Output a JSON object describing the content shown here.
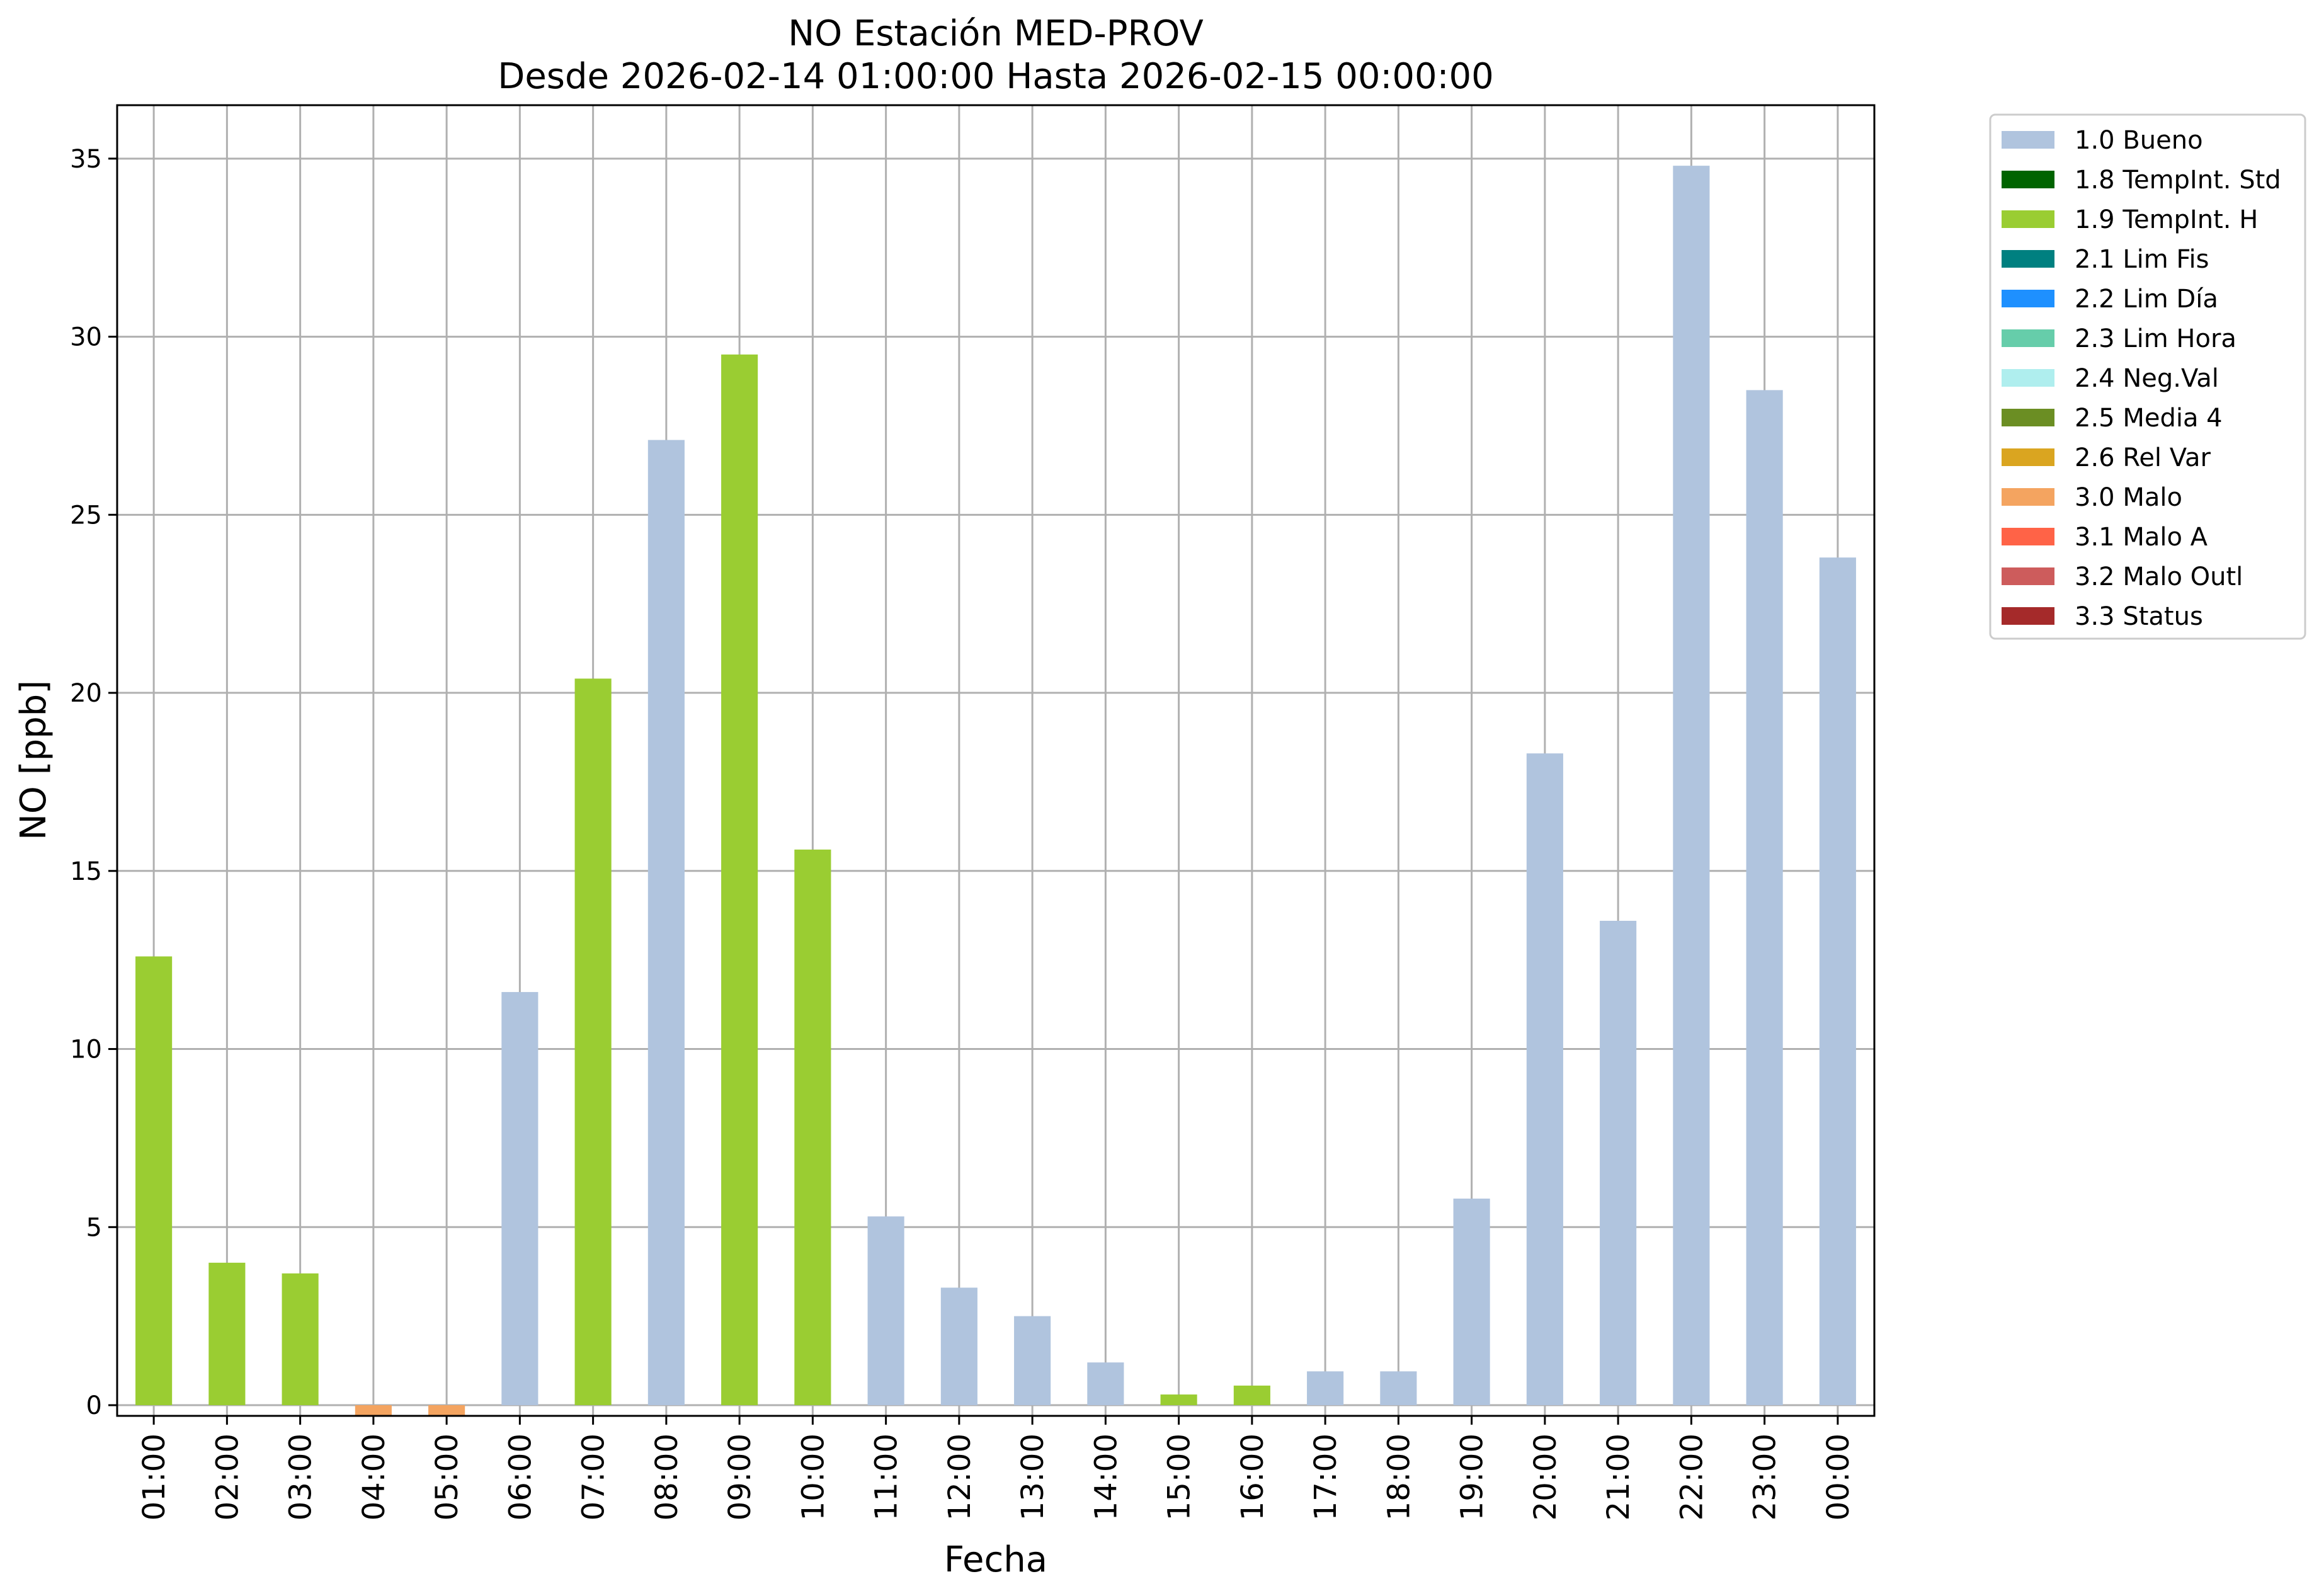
{
  "chart_data": {
    "type": "bar",
    "title": "NO Estación MED-PROV",
    "subtitle": "Desde 2026-02-14 01:00:00 Hasta 2026-02-15 00:00:00",
    "xlabel": "Fecha",
    "ylabel": "NO [ppb]",
    "ylim": [
      -0.3,
      36.5
    ],
    "yticks": [
      0,
      5,
      10,
      15,
      20,
      25,
      30,
      35
    ],
    "grid": true,
    "legend_position": "outside-right-top",
    "categories": [
      "01:00",
      "02:00",
      "03:00",
      "04:00",
      "05:00",
      "06:00",
      "07:00",
      "08:00",
      "09:00",
      "10:00",
      "11:00",
      "12:00",
      "13:00",
      "14:00",
      "15:00",
      "16:00",
      "17:00",
      "18:00",
      "19:00",
      "20:00",
      "21:00",
      "22:00",
      "23:00",
      "00:00"
    ],
    "values": [
      12.6,
      4.0,
      3.7,
      -0.3,
      -0.3,
      11.6,
      20.4,
      27.1,
      29.5,
      15.6,
      5.3,
      3.3,
      2.5,
      1.2,
      0.3,
      0.55,
      0.95,
      0.95,
      5.8,
      18.3,
      13.6,
      34.8,
      28.5,
      23.8
    ],
    "flags": [
      "1.9 TempInt. H",
      "1.9 TempInt. H",
      "1.9 TempInt. H",
      "3.0 Malo",
      "3.0 Malo",
      "1.0 Bueno",
      "1.9 TempInt. H",
      "1.0 Bueno",
      "1.9 TempInt. H",
      "1.9 TempInt. H",
      "1.0 Bueno",
      "1.0 Bueno",
      "1.0 Bueno",
      "1.0 Bueno",
      "1.9 TempInt. H",
      "1.9 TempInt. H",
      "1.0 Bueno",
      "1.0 Bueno",
      "1.0 Bueno",
      "1.0 Bueno",
      "1.0 Bueno",
      "1.0 Bueno",
      "1.0 Bueno",
      "1.0 Bueno"
    ],
    "legend": [
      {
        "label": "1.0 Bueno",
        "color": "#b0c4de"
      },
      {
        "label": "1.8 TempInt. Std",
        "color": "#006400"
      },
      {
        "label": "1.9 TempInt. H",
        "color": "#9acd32"
      },
      {
        "label": "2.1 Lim Fis",
        "color": "#008080"
      },
      {
        "label": "2.2 Lim Día",
        "color": "#1e90ff"
      },
      {
        "label": "2.3 Lim Hora",
        "color": "#66cdaa"
      },
      {
        "label": "2.4 Neg.Val",
        "color": "#afeeee"
      },
      {
        "label": "2.5 Media 4",
        "color": "#6b8e23"
      },
      {
        "label": "2.6 Rel Var",
        "color": "#daa520"
      },
      {
        "label": "3.0 Malo",
        "color": "#f4a460"
      },
      {
        "label": "3.1 Malo A",
        "color": "#ff6347"
      },
      {
        "label": "3.2 Malo Outl",
        "color": "#cd5c5c"
      },
      {
        "label": "3.3 Status",
        "color": "#a52a2a"
      }
    ]
  }
}
